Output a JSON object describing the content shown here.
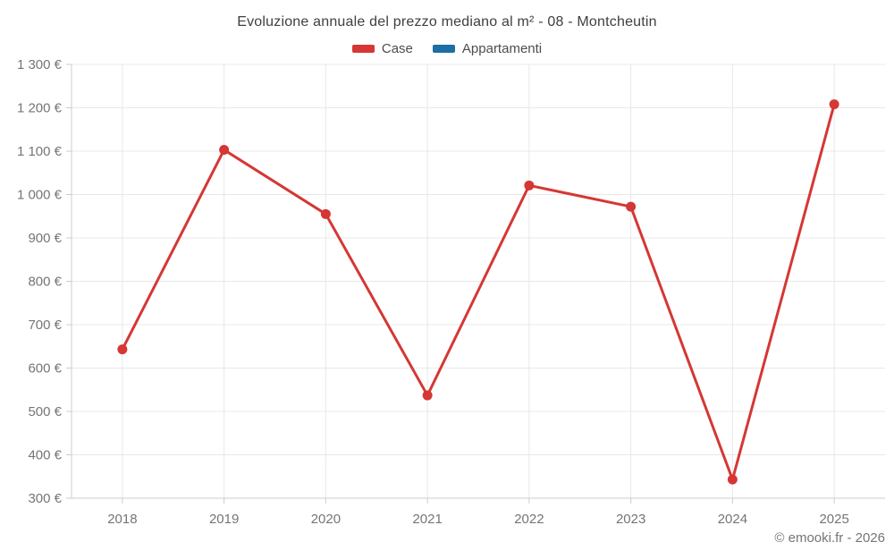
{
  "chart_data": {
    "type": "line",
    "title": "Evoluzione annuale del prezzo mediano al m² - 08 - Montcheutin",
    "categories": [
      "2018",
      "2019",
      "2020",
      "2021",
      "2022",
      "2023",
      "2024",
      "2025"
    ],
    "series": [
      {
        "name": "Case",
        "color": "#d53734",
        "values": [
          643,
          1103,
          955,
          537,
          1021,
          972,
          343,
          1208
        ]
      },
      {
        "name": "Appartamenti",
        "color": "#1c6ea4",
        "values": []
      }
    ],
    "ylim": [
      300,
      1300
    ],
    "yticks": [
      300,
      400,
      500,
      600,
      700,
      800,
      900,
      1000,
      1100,
      1200,
      1300
    ],
    "ytick_labels": [
      "300 €",
      "400 €",
      "500 €",
      "600 €",
      "700 €",
      "800 €",
      "900 €",
      "1 000 €",
      "1 100 €",
      "1 200 €",
      "1 300 €"
    ],
    "grid": true,
    "legend_position": "top",
    "xlabel": "",
    "ylabel": ""
  },
  "footer": {
    "credit": "© emooki.fr - 2026"
  },
  "colors": {
    "background": "#ffffff",
    "title_text": "#404040",
    "axis_label": "#757575",
    "legend_text": "#4d4d4d",
    "gridline": "#e8e8e8",
    "axis_line": "#cccccc"
  }
}
